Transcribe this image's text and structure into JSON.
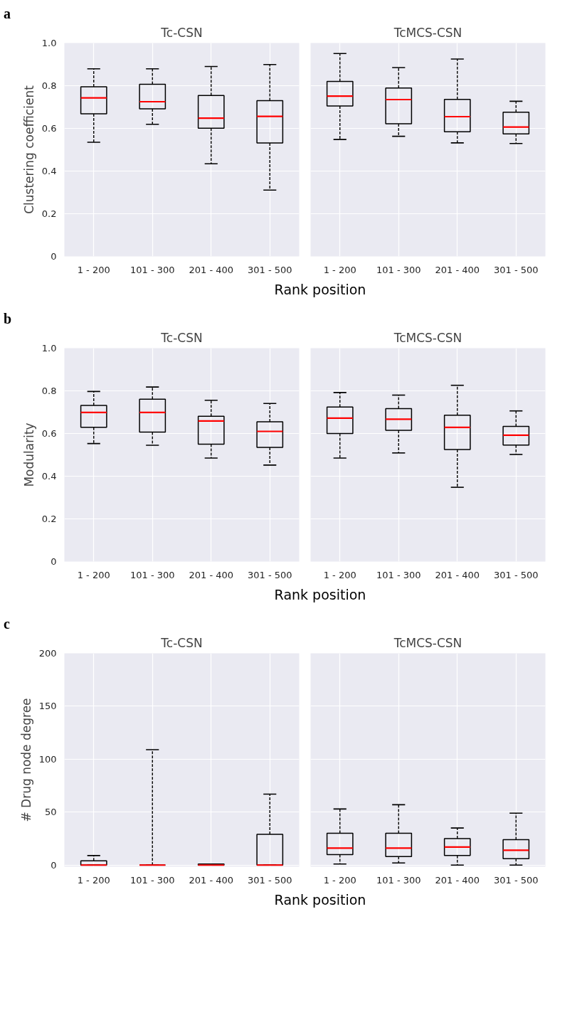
{
  "chart_data": [
    {
      "type": "box",
      "title": "Tc-CSN",
      "annotations": [
        "a"
      ],
      "xlabel": "Rank position",
      "ylabel": "Clustering coefficient",
      "categories": [
        "1 - 200",
        "101 - 300",
        "201 - 400",
        "301 - 500"
      ],
      "ylim": [
        0,
        1.0
      ],
      "yticks": [
        0,
        0.2,
        0.4,
        0.6,
        0.8,
        {
          "value": 1,
          "label": "1.0"
        }
      ],
      "grid": true,
      "boxes": [
        {
          "low": 0.535,
          "q1": 0.668,
          "median": 0.743,
          "q3": 0.795,
          "high": 0.879
        },
        {
          "low": 0.619,
          "q1": 0.692,
          "median": 0.725,
          "q3": 0.807,
          "high": 0.879
        },
        {
          "low": 0.434,
          "q1": 0.601,
          "median": 0.648,
          "q3": 0.754,
          "high": 0.89
        },
        {
          "low": 0.311,
          "q1": 0.532,
          "median": 0.656,
          "q3": 0.73,
          "high": 0.899
        }
      ]
    },
    {
      "type": "box",
      "title": "TcMCS-CSN",
      "categories": [
        "1 - 200",
        "101 - 300",
        "201 - 400",
        "301 - 500"
      ],
      "ylim": [
        0,
        1.0
      ],
      "yticks": [
        0,
        0.2,
        0.4,
        0.6,
        0.8,
        1.0
      ],
      "grid": true,
      "tick_labels": "x",
      "boxes": [
        {
          "low": 0.548,
          "q1": 0.705,
          "median": 0.751,
          "q3": 0.82,
          "high": 0.951
        },
        {
          "low": 0.563,
          "q1": 0.622,
          "median": 0.735,
          "q3": 0.789,
          "high": 0.885
        },
        {
          "low": 0.532,
          "q1": 0.584,
          "median": 0.655,
          "q3": 0.736,
          "high": 0.925
        },
        {
          "low": 0.529,
          "q1": 0.574,
          "median": 0.606,
          "q3": 0.676,
          "high": 0.727
        }
      ]
    },
    {
      "type": "box",
      "title": "Tc-CSN",
      "annotations": [
        "b"
      ],
      "xlabel": "Rank position",
      "ylabel": "Modularity",
      "categories": [
        "1 - 200",
        "101 - 300",
        "201 - 400",
        "301 - 500"
      ],
      "ylim": [
        0,
        1.0
      ],
      "yticks": [
        0,
        0.2,
        0.4,
        0.6,
        0.8,
        {
          "value": 1,
          "label": "1.0"
        }
      ],
      "grid": true,
      "boxes": [
        {
          "low": 0.553,
          "q1": 0.629,
          "median": 0.699,
          "q3": 0.732,
          "high": 0.797
        },
        {
          "low": 0.545,
          "q1": 0.607,
          "median": 0.699,
          "q3": 0.761,
          "high": 0.818
        },
        {
          "low": 0.485,
          "q1": 0.55,
          "median": 0.659,
          "q3": 0.681,
          "high": 0.756
        },
        {
          "low": 0.452,
          "q1": 0.535,
          "median": 0.61,
          "q3": 0.655,
          "high": 0.741
        }
      ]
    },
    {
      "type": "box",
      "title": "TcMCS-CSN",
      "categories": [
        "1 - 200",
        "101 - 300",
        "201 - 400",
        "301 - 500"
      ],
      "ylim": [
        0,
        1.0
      ],
      "yticks": [
        0,
        0.2,
        0.4,
        0.6,
        0.8,
        1.0
      ],
      "grid": true,
      "tick_labels": "x",
      "boxes": [
        {
          "low": 0.485,
          "q1": 0.6,
          "median": 0.672,
          "q3": 0.724,
          "high": 0.792
        },
        {
          "low": 0.509,
          "q1": 0.615,
          "median": 0.667,
          "q3": 0.717,
          "high": 0.78
        },
        {
          "low": 0.348,
          "q1": 0.525,
          "median": 0.629,
          "q3": 0.686,
          "high": 0.826
        },
        {
          "low": 0.502,
          "q1": 0.546,
          "median": 0.592,
          "q3": 0.633,
          "high": 0.706
        }
      ]
    },
    {
      "type": "box",
      "title": "Tc-CSN",
      "annotations": [
        "c"
      ],
      "xlabel": "Rank position",
      "ylabel": "# Drug node degree",
      "categories": [
        "1 - 200",
        "101 - 300",
        "201 - 400",
        "301 - 500"
      ],
      "ylim": [
        -1.5,
        200
      ],
      "yticks": [
        0,
        50,
        100,
        150,
        200
      ],
      "grid": true,
      "boxes": [
        {
          "low": 0,
          "q1": 0,
          "median": 0,
          "q3": 4,
          "high": 9
        },
        {
          "low": 0,
          "q1": 0,
          "median": 0,
          "q3": 0,
          "high": 109
        },
        {
          "low": 0,
          "q1": 0,
          "median": 0,
          "q3": 1,
          "high": 1
        },
        {
          "low": 0,
          "q1": 0,
          "median": 0,
          "q3": 29,
          "high": 67
        }
      ]
    },
    {
      "type": "box",
      "title": "TcMCS-CSN",
      "categories": [
        "1 - 200",
        "101 - 300",
        "201 - 400",
        "301 - 500"
      ],
      "ylim": [
        -1.5,
        200
      ],
      "yticks": [
        0,
        50,
        100,
        150,
        200
      ],
      "grid": true,
      "tick_labels": "x",
      "boxes": [
        {
          "low": 1,
          "q1": 10,
          "median": 16,
          "q3": 30,
          "high": 53
        },
        {
          "low": 2,
          "q1": 8,
          "median": 16,
          "q3": 30,
          "high": 57
        },
        {
          "low": 0,
          "q1": 9,
          "median": 17,
          "q3": 25,
          "high": 35
        },
        {
          "low": 0,
          "q1": 6,
          "median": 14,
          "q3": 24,
          "high": 49
        }
      ]
    }
  ]
}
